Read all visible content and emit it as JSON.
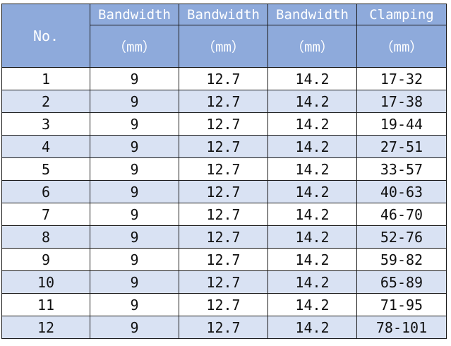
{
  "header": {
    "no": "No.",
    "columns": [
      {
        "title": "Bandwidth",
        "unit": "（mm）"
      },
      {
        "title": "Bandwidth",
        "unit": "（mm）"
      },
      {
        "title": "Bandwidth",
        "unit": "（mm）"
      },
      {
        "title": "Clamping",
        "unit": "（mm）"
      }
    ]
  },
  "rows": [
    [
      "1",
      "9",
      "12.7",
      "14.2",
      "17-32"
    ],
    [
      "2",
      "9",
      "12.7",
      "14.2",
      "17-38"
    ],
    [
      "3",
      "9",
      "12.7",
      "14.2",
      "19-44"
    ],
    [
      "4",
      "9",
      "12.7",
      "14.2",
      "27-51"
    ],
    [
      "5",
      "9",
      "12.7",
      "14.2",
      "33-57"
    ],
    [
      "6",
      "9",
      "12.7",
      "14.2",
      "40-63"
    ],
    [
      "7",
      "9",
      "12.7",
      "14.2",
      "46-70"
    ],
    [
      "8",
      "9",
      "12.7",
      "14.2",
      "52-76"
    ],
    [
      "9",
      "9",
      "12.7",
      "14.2",
      "59-82"
    ],
    [
      "10",
      "9",
      "12.7",
      "14.2",
      "65-89"
    ],
    [
      "11",
      "9",
      "12.7",
      "14.2",
      "71-95"
    ],
    [
      "12",
      "9",
      "12.7",
      "14.2",
      "78-101"
    ]
  ]
}
